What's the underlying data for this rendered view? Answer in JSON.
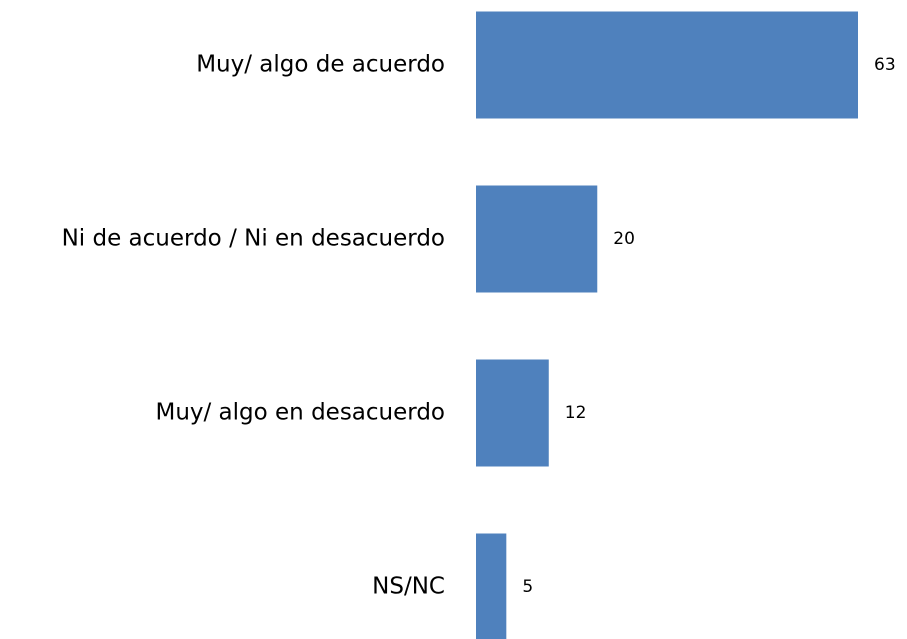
{
  "chart_data": {
    "type": "bar",
    "orientation": "horizontal",
    "categories": [
      "Muy/ algo de acuerdo",
      "Ni de acuerdo / Ni en desacuerdo",
      "Muy/ algo en desacuerdo",
      "NS/NC"
    ],
    "values": [
      63,
      20,
      12,
      5
    ],
    "color": "#4f81bd"
  }
}
